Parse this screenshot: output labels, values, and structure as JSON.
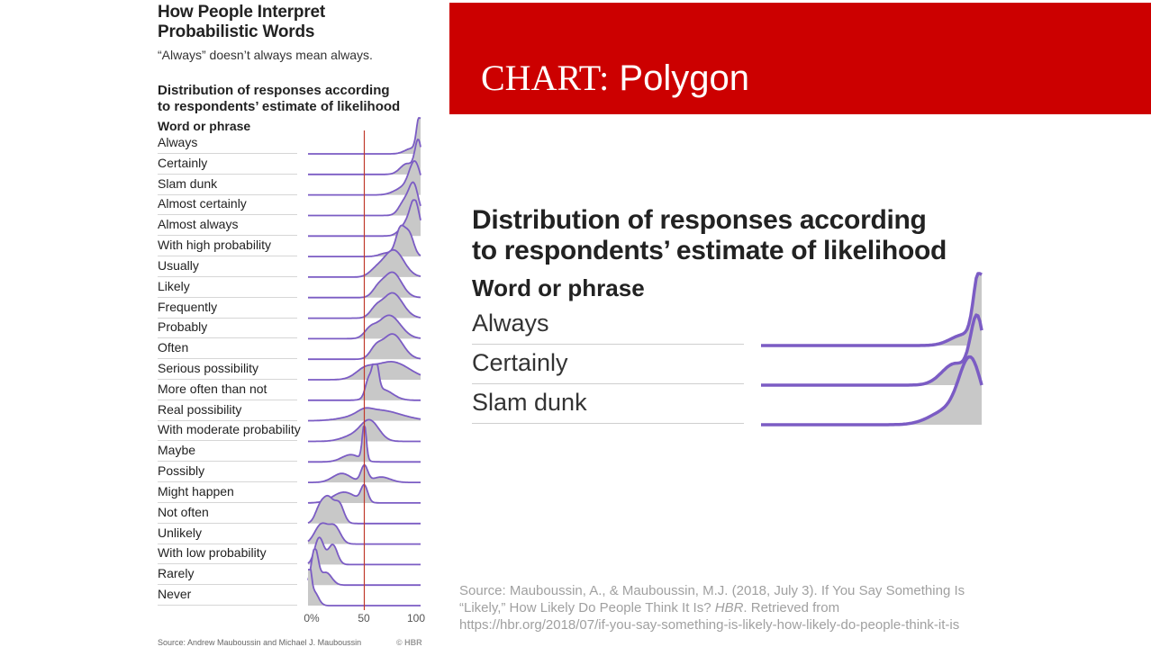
{
  "left": {
    "title_line1": "How People Interpret",
    "title_line2": "Probabilistic Words",
    "subtitle": "“Always” doesn’t always mean always.",
    "heading_line1": "Distribution of responses according",
    "heading_line2": "to respondents’ estimate of likelihood",
    "word_header": "Word or phrase",
    "source_cut": "Source: Andrew Mauboussin and Michael J. Mauboussin",
    "hbr_cut": "© HBR"
  },
  "banner": {
    "title_serif": "CHART:",
    "title_rest": " Polygon"
  },
  "zoom": {
    "heading_line1": "Distribution of responses according",
    "heading_line2": "to respondents’ estimate of likelihood",
    "word_header": "Word or phrase"
  },
  "source": {
    "line1": "Source: Mauboussin, A., & Mauboussin, M.J. (2018, July 3). If You Say Something Is",
    "line2a": "“Likely,” How Likely Do People Think It Is? ",
    "line2_italic": "HBR",
    "line2b": ". Retrieved from",
    "line3": "https://hbr.org/2018/07/if-you-say-something-is-likely-how-likely-do-people-think-it-is"
  },
  "colors": {
    "banner": "#cc0000",
    "line": "#7b5cc4",
    "fill": "#c8c8c8",
    "reference": "#c0392b"
  },
  "chart_data": {
    "type": "area",
    "xlabel": "",
    "ylabel": "",
    "x_ticks": [
      "0%",
      "50",
      "100"
    ],
    "xlim": [
      0,
      100
    ],
    "reference_line": 50,
    "zoom_rows": [
      0,
      1,
      2
    ],
    "rows": [
      {
        "label": "Always",
        "peaks": [
          [
            99,
            2.5,
            1.0
          ],
          [
            92,
            6,
            0.15
          ]
        ]
      },
      {
        "label": "Certainly",
        "peaks": [
          [
            98,
            3,
            0.9
          ],
          [
            88,
            6,
            0.3
          ]
        ]
      },
      {
        "label": "Slam dunk",
        "peaks": [
          [
            95,
            5,
            0.85
          ],
          [
            85,
            8,
            0.2
          ]
        ]
      },
      {
        "label": "Almost certainly",
        "peaks": [
          [
            94,
            4,
            0.8
          ],
          [
            86,
            5,
            0.4
          ]
        ]
      },
      {
        "label": "Almost always",
        "peaks": [
          [
            95,
            4,
            0.85
          ],
          [
            88,
            6,
            0.35
          ]
        ]
      },
      {
        "label": "With high probability",
        "peaks": [
          [
            82,
            4,
            0.75
          ],
          [
            90,
            4,
            0.6
          ],
          [
            70,
            6,
            0.1
          ]
        ]
      },
      {
        "label": "Usually",
        "peaks": [
          [
            76,
            9,
            0.75
          ],
          [
            60,
            6,
            0.15
          ]
        ]
      },
      {
        "label": "Likely",
        "peaks": [
          [
            75,
            8,
            0.7
          ],
          [
            62,
            5,
            0.2
          ]
        ]
      },
      {
        "label": "Frequently",
        "peaks": [
          [
            75,
            9,
            0.7
          ],
          [
            60,
            5,
            0.2
          ]
        ]
      },
      {
        "label": "Probably",
        "peaks": [
          [
            72,
            10,
            0.65
          ],
          [
            55,
            5,
            0.2
          ]
        ]
      },
      {
        "label": "Often",
        "peaks": [
          [
            75,
            9,
            0.7
          ],
          [
            60,
            5,
            0.25
          ]
        ]
      },
      {
        "label": "Serious possibility",
        "peaks": [
          [
            74,
            16,
            0.5
          ],
          [
            50,
            8,
            0.2
          ]
        ]
      },
      {
        "label": "More often than not",
        "peaks": [
          [
            60,
            2.5,
            0.95
          ],
          [
            66,
            9,
            0.3
          ],
          [
            54,
            3,
            0.5
          ]
        ]
      },
      {
        "label": "Real possibility",
        "peaks": [
          [
            62,
            20,
            0.3
          ],
          [
            50,
            6,
            0.1
          ]
        ]
      },
      {
        "label": "With moderate probability",
        "peaks": [
          [
            55,
            8,
            0.55
          ],
          [
            40,
            10,
            0.15
          ]
        ]
      },
      {
        "label": "Maybe",
        "peaks": [
          [
            50,
            1.8,
            1.0
          ],
          [
            38,
            8,
            0.2
          ]
        ]
      },
      {
        "label": "Possibly",
        "peaks": [
          [
            50,
            3,
            0.45
          ],
          [
            30,
            8,
            0.25
          ],
          [
            65,
            8,
            0.15
          ]
        ]
      },
      {
        "label": "Might happen",
        "peaks": [
          [
            50,
            3,
            0.45
          ],
          [
            32,
            10,
            0.3
          ]
        ]
      },
      {
        "label": "Not often",
        "peaks": [
          [
            18,
            5,
            0.7
          ],
          [
            28,
            4,
            0.5
          ],
          [
            10,
            4,
            0.35
          ]
        ]
      },
      {
        "label": "Unlikely",
        "peaks": [
          [
            12,
            6,
            0.55
          ],
          [
            24,
            5,
            0.45
          ]
        ]
      },
      {
        "label": "With low probability",
        "peaks": [
          [
            10,
            4,
            0.75
          ],
          [
            22,
            4,
            0.55
          ]
        ]
      },
      {
        "label": "Rarely",
        "peaks": [
          [
            6,
            3,
            1.0
          ],
          [
            16,
            5,
            0.35
          ]
        ]
      },
      {
        "label": "Never",
        "peaks": [
          [
            1,
            1.8,
            1.0
          ],
          [
            5,
            4,
            0.4
          ]
        ]
      }
    ]
  }
}
